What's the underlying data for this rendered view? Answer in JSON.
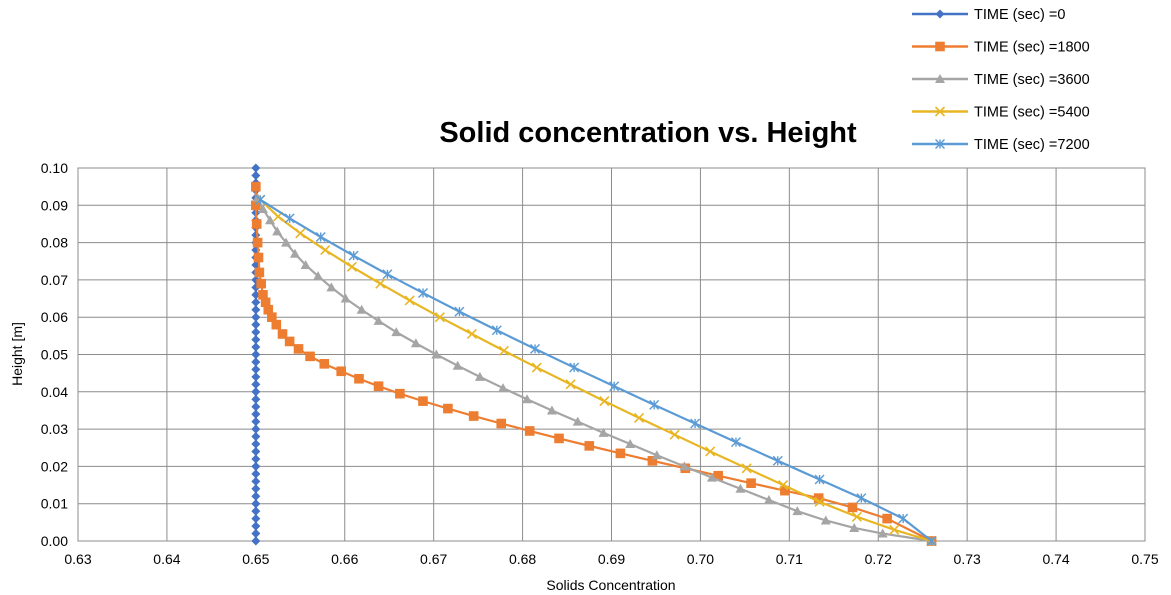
{
  "chart_data": {
    "type": "line",
    "title": "Solid concentration vs. Height",
    "xlabel": "Solids Concentration",
    "ylabel": "Height [m]",
    "xlim": [
      0.63,
      0.75
    ],
    "ylim": [
      0.0,
      0.1
    ],
    "xticks": [
      "0.63",
      "0.64",
      "0.65",
      "0.66",
      "0.67",
      "0.68",
      "0.69",
      "0.70",
      "0.71",
      "0.72",
      "0.73",
      "0.74",
      "0.75"
    ],
    "yticks": [
      "0.00",
      "0.01",
      "0.02",
      "0.03",
      "0.04",
      "0.05",
      "0.06",
      "0.07",
      "0.08",
      "0.09",
      "0.10"
    ],
    "grid": true,
    "legend_position": "top-right",
    "series": [
      {
        "name": "TIME (sec) =0",
        "marker": "diamond",
        "color": "#4472C4",
        "x": [
          0.65,
          0.65,
          0.65,
          0.65,
          0.65,
          0.65,
          0.65,
          0.65,
          0.65,
          0.65,
          0.65,
          0.65,
          0.65,
          0.65,
          0.65,
          0.65,
          0.65,
          0.65,
          0.65,
          0.65,
          0.65,
          0.65,
          0.65,
          0.65,
          0.65,
          0.65,
          0.65,
          0.65,
          0.65,
          0.65,
          0.65,
          0.65,
          0.65,
          0.65,
          0.65,
          0.65,
          0.65,
          0.65,
          0.65,
          0.65,
          0.65,
          0.65,
          0.65,
          0.65,
          0.65,
          0.65,
          0.65,
          0.65,
          0.65,
          0.65,
          0.65
        ],
        "y": [
          0.1,
          0.098,
          0.096,
          0.094,
          0.092,
          0.09,
          0.088,
          0.086,
          0.084,
          0.082,
          0.08,
          0.078,
          0.076,
          0.074,
          0.072,
          0.07,
          0.068,
          0.066,
          0.064,
          0.062,
          0.06,
          0.058,
          0.056,
          0.054,
          0.052,
          0.05,
          0.048,
          0.046,
          0.044,
          0.042,
          0.04,
          0.038,
          0.036,
          0.034,
          0.032,
          0.03,
          0.028,
          0.026,
          0.024,
          0.022,
          0.02,
          0.018,
          0.016,
          0.014,
          0.012,
          0.01,
          0.008,
          0.006,
          0.004,
          0.002,
          0.0
        ]
      },
      {
        "name": "TIME (sec) =1800",
        "marker": "square",
        "color": "#ED7D31",
        "x": [
          0.65,
          0.65,
          0.6501,
          0.6502,
          0.6503,
          0.6504,
          0.6506,
          0.6508,
          0.6511,
          0.6514,
          0.6518,
          0.6523,
          0.653,
          0.6538,
          0.6548,
          0.6561,
          0.6577,
          0.6596,
          0.6616,
          0.6638,
          0.6662,
          0.6688,
          0.6716,
          0.6745,
          0.6776,
          0.6808,
          0.6841,
          0.6875,
          0.691,
          0.6946,
          0.6983,
          0.702,
          0.7057,
          0.7095,
          0.7133,
          0.7171,
          0.721,
          0.726
        ],
        "y": [
          0.095,
          0.09,
          0.085,
          0.08,
          0.076,
          0.072,
          0.069,
          0.066,
          0.064,
          0.062,
          0.06,
          0.058,
          0.0555,
          0.0535,
          0.0515,
          0.0495,
          0.0475,
          0.0455,
          0.0435,
          0.0415,
          0.0395,
          0.0375,
          0.0355,
          0.0335,
          0.0315,
          0.0295,
          0.0275,
          0.0255,
          0.0235,
          0.0215,
          0.0195,
          0.0175,
          0.0155,
          0.0135,
          0.0115,
          0.009,
          0.006,
          0.0
        ]
      },
      {
        "name": "TIME (sec) =3600",
        "marker": "triangle",
        "color": "#A5A5A5",
        "x": [
          0.6502,
          0.6508,
          0.6516,
          0.6524,
          0.6534,
          0.6544,
          0.6556,
          0.657,
          0.6585,
          0.6601,
          0.6619,
          0.6638,
          0.6658,
          0.668,
          0.6703,
          0.6727,
          0.6752,
          0.6778,
          0.6805,
          0.6833,
          0.6862,
          0.6891,
          0.6921,
          0.6951,
          0.6982,
          0.7013,
          0.7045,
          0.7077,
          0.7109,
          0.7141,
          0.7173,
          0.7205,
          0.726
        ],
        "y": [
          0.092,
          0.089,
          0.086,
          0.083,
          0.08,
          0.077,
          0.074,
          0.071,
          0.068,
          0.065,
          0.062,
          0.059,
          0.056,
          0.053,
          0.05,
          0.047,
          0.044,
          0.041,
          0.038,
          0.035,
          0.032,
          0.029,
          0.026,
          0.023,
          0.02,
          0.017,
          0.014,
          0.011,
          0.008,
          0.0055,
          0.0035,
          0.002,
          0.0
        ]
      },
      {
        "name": "TIME (sec) =5400",
        "marker": "x",
        "color": "#E8B623",
        "x": [
          0.6505,
          0.6525,
          0.655,
          0.6578,
          0.6608,
          0.664,
          0.6673,
          0.6707,
          0.6743,
          0.6779,
          0.6816,
          0.6854,
          0.6892,
          0.6931,
          0.6971,
          0.7011,
          0.7052,
          0.7093,
          0.7134,
          0.7176,
          0.7218,
          0.726
        ],
        "y": [
          0.0915,
          0.087,
          0.0825,
          0.078,
          0.0735,
          0.069,
          0.0645,
          0.06,
          0.0555,
          0.051,
          0.0465,
          0.042,
          0.0375,
          0.033,
          0.0285,
          0.024,
          0.0195,
          0.015,
          0.0105,
          0.0065,
          0.003,
          0.0
        ]
      },
      {
        "name": "TIME (sec) =7200",
        "marker": "star",
        "color": "#5B9BD5",
        "x": [
          0.6505,
          0.6538,
          0.6573,
          0.661,
          0.6648,
          0.6688,
          0.6729,
          0.6771,
          0.6814,
          0.6858,
          0.6903,
          0.6948,
          0.6994,
          0.704,
          0.7087,
          0.7134,
          0.7181,
          0.7228,
          0.726
        ],
        "y": [
          0.0915,
          0.0865,
          0.0815,
          0.0765,
          0.0715,
          0.0665,
          0.0615,
          0.0565,
          0.0515,
          0.0465,
          0.0415,
          0.0365,
          0.0315,
          0.0265,
          0.0215,
          0.0165,
          0.0115,
          0.006,
          0.0
        ]
      }
    ]
  }
}
